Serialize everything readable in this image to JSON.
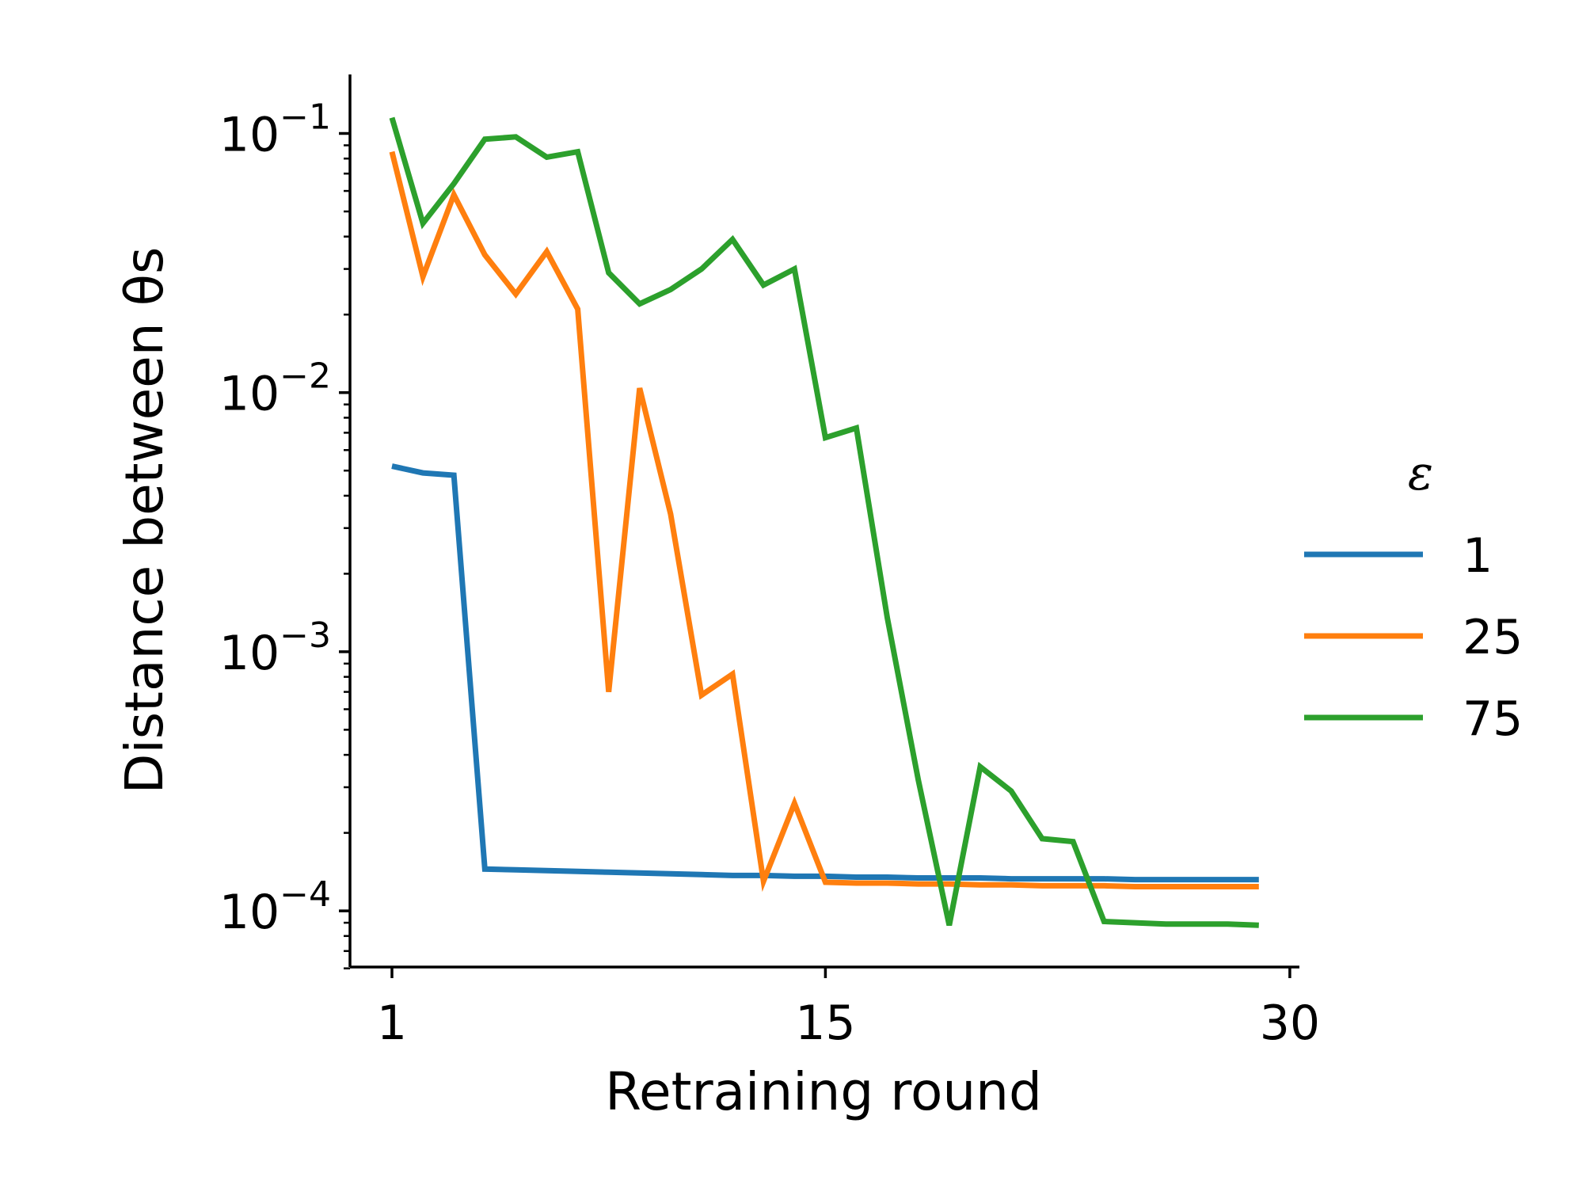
{
  "chart_data": {
    "type": "line",
    "xlabel": "Retraining round",
    "ylabel": "Distance between θs",
    "yscale": "log",
    "xlim": [
      0,
      30
    ],
    "ylim": [
      6e-05,
      0.17
    ],
    "xticks": [
      {
        "value": 1,
        "label": "1"
      },
      {
        "value": 15,
        "label": "15"
      },
      {
        "value": 30,
        "label": "30"
      }
    ],
    "yticks": [
      {
        "value": 0.1,
        "base": "10",
        "exp": "−1"
      },
      {
        "value": 0.01,
        "base": "10",
        "exp": "−2"
      },
      {
        "value": 0.001,
        "base": "10",
        "exp": "−3"
      },
      {
        "value": 0.0001,
        "base": "10",
        "exp": "−4"
      }
    ],
    "grid": false,
    "legend": {
      "title": "ε",
      "position": "right"
    },
    "x": [
      1,
      2,
      3,
      4,
      5,
      6,
      7,
      8,
      9,
      10,
      11,
      12,
      13,
      14,
      15,
      16,
      17,
      18,
      19,
      20,
      21,
      22,
      23,
      24,
      25,
      26,
      27,
      28,
      29
    ],
    "series": [
      {
        "name": "1",
        "color": "#1f77b4",
        "values": [
          0.0052,
          0.0049,
          0.0048,
          0.000145,
          0.000144,
          0.000143,
          0.000142,
          0.000141,
          0.00014,
          0.000139,
          0.000138,
          0.000137,
          0.000137,
          0.000136,
          0.000136,
          0.000135,
          0.000135,
          0.000134,
          0.000134,
          0.000134,
          0.000133,
          0.000133,
          0.000133,
          0.000133,
          0.000132,
          0.000132,
          0.000132,
          0.000132,
          0.000132
        ]
      },
      {
        "name": "25",
        "color": "#ff7f0e",
        "values": [
          0.085,
          0.028,
          0.058,
          0.034,
          0.024,
          0.035,
          0.021,
          0.0007,
          0.0104,
          0.0034,
          0.00068,
          0.00082,
          0.00013,
          0.00026,
          0.000129,
          0.000128,
          0.000128,
          0.000127,
          0.000127,
          0.000126,
          0.000126,
          0.000125,
          0.000125,
          0.000125,
          0.000124,
          0.000124,
          0.000124,
          0.000124,
          0.000124
        ]
      },
      {
        "name": "75",
        "color": "#2ca02c",
        "values": [
          0.115,
          0.045,
          0.064,
          0.095,
          0.097,
          0.081,
          0.085,
          0.029,
          0.022,
          0.025,
          0.03,
          0.039,
          0.026,
          0.03,
          0.0067,
          0.0073,
          0.00135,
          0.00032,
          8.8e-05,
          0.00036,
          0.00029,
          0.00019,
          0.000185,
          9.1e-05,
          9e-05,
          8.9e-05,
          8.9e-05,
          8.9e-05,
          8.8e-05
        ]
      }
    ]
  }
}
